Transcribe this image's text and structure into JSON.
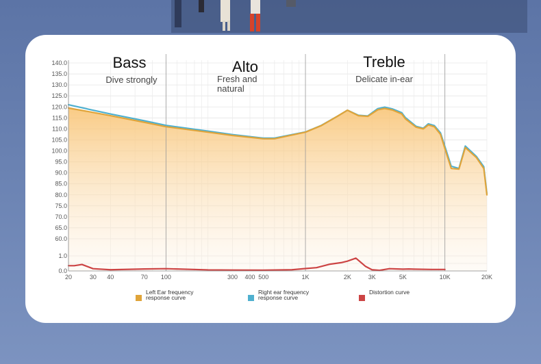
{
  "chart_data": {
    "type": "line",
    "x_scale": "log",
    "x_ticks": [
      "20",
      "30",
      "40",
      "70",
      "100",
      "300",
      "400",
      "500",
      "1K",
      "2K",
      "3K",
      "5K",
      "10K",
      "20K"
    ],
    "x_tick_values": [
      20,
      30,
      40,
      70,
      100,
      300,
      400,
      500,
      1000,
      2000,
      3000,
      5000,
      10000,
      20000
    ],
    "y_ticks": [
      "0.0",
      "1.0",
      "60.0",
      "65.0",
      "70.0",
      "75.0",
      "80.0",
      "85.0",
      "90.0",
      "95.0",
      "100.0",
      "105.0",
      "110.0",
      "115.0",
      "120.0",
      "125.0",
      "130.0",
      "135.0",
      "140.0"
    ],
    "y_main_range": [
      60,
      140
    ],
    "distortion_range": [
      0,
      1.0
    ],
    "bands": [
      {
        "title": "Bass",
        "subtitle": [
          "Dive strongly"
        ]
      },
      {
        "title": "Alto",
        "subtitle": [
          "Fresh and",
          "natural"
        ]
      },
      {
        "title": "Treble",
        "subtitle": [
          "Delicate in-ear"
        ]
      }
    ],
    "band_dividers": [
      100,
      1000,
      10000
    ],
    "grid": true,
    "legend_position": "bottom",
    "series": [
      {
        "name": "Left Ear frequency response curve",
        "color": "#e0a43a",
        "x": [
          20,
          30,
          40,
          70,
          100,
          200,
          300,
          500,
          600,
          1000,
          1300,
          1700,
          2000,
          2400,
          2800,
          3300,
          3700,
          4200,
          4900,
          5200,
          6200,
          7000,
          7600,
          8400,
          9300,
          10000,
          11100,
          12600,
          14000,
          16800,
          19000,
          20000
        ],
        "y": [
          119.5,
          117.5,
          116,
          113,
          111,
          108.5,
          107,
          105.5,
          105.5,
          108.5,
          111.5,
          115.8,
          118.5,
          116,
          115.7,
          118.7,
          119.3,
          118.6,
          116.8,
          114.6,
          110.8,
          110,
          111.8,
          111,
          107.5,
          101,
          92,
          91.7,
          101.5,
          97,
          92,
          80
        ]
      },
      {
        "name": "Right ear frequency response curve",
        "color": "#4fb0cf",
        "x": [
          20,
          30,
          40,
          70,
          100,
          200,
          300,
          500,
          600,
          1000,
          1300,
          1700,
          2000,
          2400,
          2800,
          3300,
          3700,
          4200,
          4900,
          5200,
          6200,
          7000,
          7600,
          8400,
          9300,
          10000,
          11100,
          12600,
          14000,
          16800,
          19000,
          20000
        ],
        "y": [
          121,
          118.5,
          116.8,
          113.7,
          111.6,
          109,
          107.4,
          105.8,
          105.8,
          108.6,
          111.6,
          115.8,
          118.5,
          116.2,
          115.9,
          119.2,
          119.9,
          119.1,
          117.4,
          115.2,
          111.2,
          110.3,
          112.3,
          111.5,
          108.2,
          102,
          93,
          92,
          102.2,
          97.5,
          92.8,
          80.5
        ]
      },
      {
        "name": "Distortion curve",
        "color": "#cc4444",
        "x": [
          20,
          22,
          25,
          30,
          40,
          70,
          100,
          200,
          300,
          500,
          800,
          1000,
          1200,
          1500,
          1800,
          2000,
          2300,
          2700,
          3000,
          3400,
          4000,
          5000,
          5500,
          6000,
          8000,
          10000
        ],
        "y": [
          0.35,
          0.35,
          0.43,
          0.15,
          0.08,
          0.13,
          0.15,
          0.07,
          0.06,
          0.05,
          0.08,
          0.16,
          0.22,
          0.45,
          0.55,
          0.65,
          0.85,
          0.3,
          0.08,
          0.04,
          0.15,
          0.12,
          0.13,
          0.12,
          0.1,
          0.1
        ]
      }
    ]
  }
}
